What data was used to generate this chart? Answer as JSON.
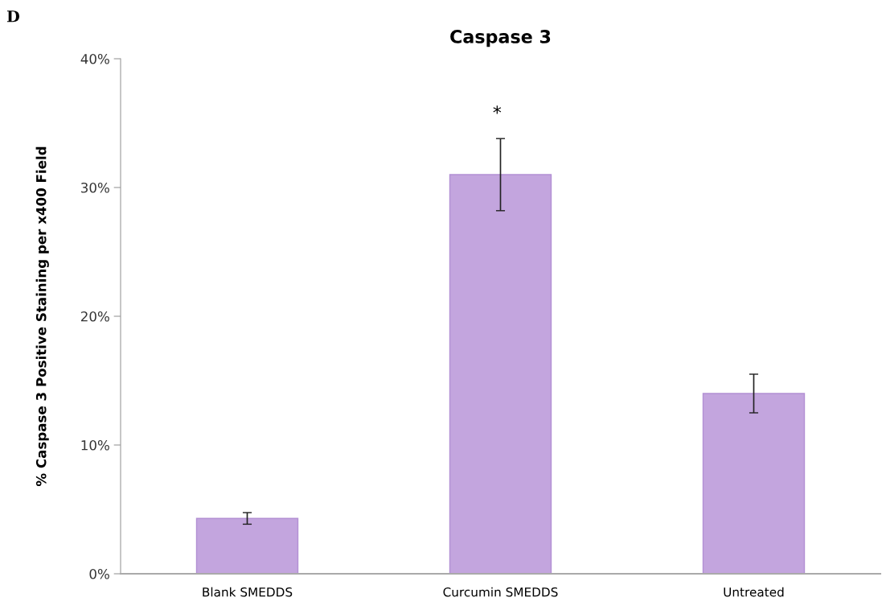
{
  "chart_data": {
    "type": "bar",
    "title": "Caspase 3",
    "ylabel": "% Caspase 3 Positive Staining per x400 Field",
    "categories": [
      "Blank SMEDDS",
      "Curcumin SMEDDS",
      "Untreated"
    ],
    "values": [
      4.3,
      31,
      14
    ],
    "errors": [
      0.45,
      2.8,
      1.5
    ],
    "color": "#c3a5de",
    "ylim": [
      0,
      40
    ],
    "yticks": [
      {
        "value": 0,
        "label": "0%"
      },
      {
        "value": 10,
        "label": "10%"
      },
      {
        "value": 20,
        "label": "20%"
      },
      {
        "value": 30,
        "label": "30%"
      },
      {
        "value": 40,
        "label": "40%"
      }
    ],
    "grid": false,
    "legend": false,
    "annotations": [
      "D",
      {
        "text": "*",
        "x": "Curcumin SMEDDS",
        "y": 33.8
      }
    ]
  }
}
